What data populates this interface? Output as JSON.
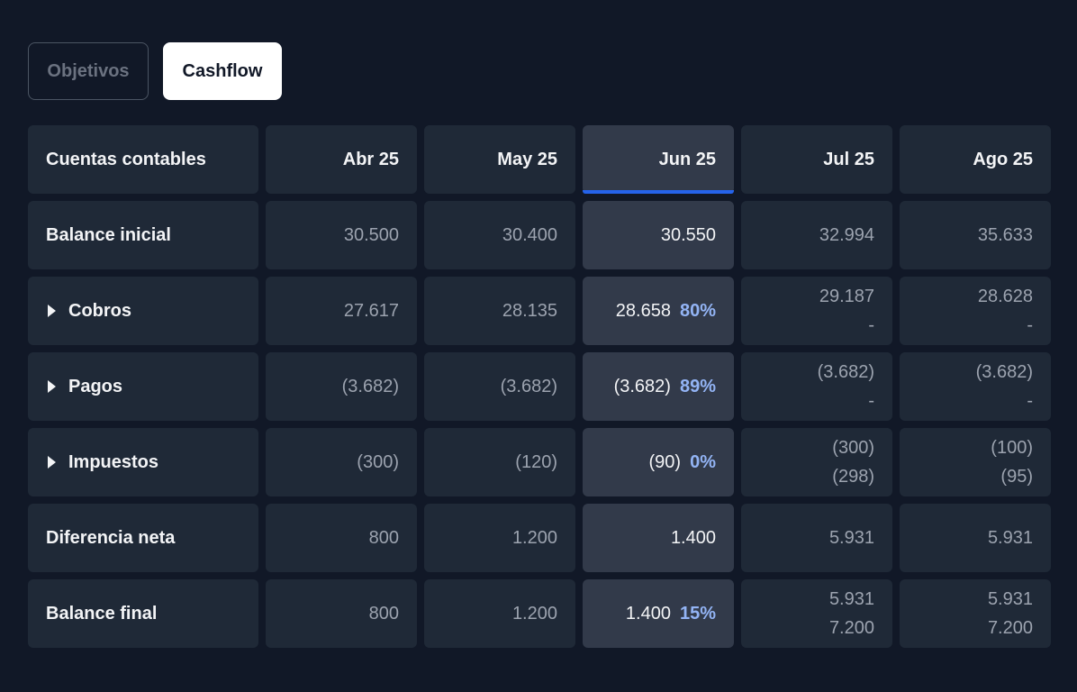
{
  "tabs": [
    {
      "label": "Objetivos",
      "active": false
    },
    {
      "label": "Cashflow",
      "active": true
    }
  ],
  "table": {
    "header_first": "Cuentas contables",
    "months": [
      "Abr 25",
      "May 25",
      "Jun 25",
      "Jul 25",
      "Ago 25"
    ],
    "highlight_month": "Jun 25",
    "rows": [
      {
        "label": "Balance inicial",
        "expandable": false,
        "abr": "30.500",
        "may": "30.400",
        "jun": {
          "value": "30.550",
          "pct": ""
        },
        "jul": {
          "line1": "32.994",
          "line2": ""
        },
        "ago": {
          "line1": "35.633",
          "line2": ""
        }
      },
      {
        "label": "Cobros",
        "expandable": true,
        "abr": "27.617",
        "may": "28.135",
        "jun": {
          "value": "28.658",
          "pct": "80%"
        },
        "jul": {
          "line1": "29.187",
          "line2": "-"
        },
        "ago": {
          "line1": "28.628",
          "line2": "-"
        }
      },
      {
        "label": "Pagos",
        "expandable": true,
        "abr": "(3.682)",
        "may": "(3.682)",
        "jun": {
          "value": "(3.682)",
          "pct": "89%"
        },
        "jul": {
          "line1": "(3.682)",
          "line2": "-"
        },
        "ago": {
          "line1": "(3.682)",
          "line2": "-"
        }
      },
      {
        "label": "Impuestos",
        "expandable": true,
        "abr": "(300)",
        "may": "(120)",
        "jun": {
          "value": "(90)",
          "pct": "0%"
        },
        "jul": {
          "line1": "(300)",
          "line2": "(298)"
        },
        "ago": {
          "line1": "(100)",
          "line2": "(95)"
        }
      },
      {
        "label": "Diferencia neta",
        "expandable": false,
        "abr": "800",
        "may": "1.200",
        "jun": {
          "value": "1.400",
          "pct": ""
        },
        "jul": {
          "line1": "5.931",
          "line2": ""
        },
        "ago": {
          "line1": "5.931",
          "line2": ""
        }
      },
      {
        "label": "Balance final",
        "expandable": false,
        "abr": "800",
        "may": "1.200",
        "jun": {
          "value": "1.400",
          "pct": "15%"
        },
        "jul": {
          "line1": "5.931",
          "line2": "7.200"
        },
        "ago": {
          "line1": "5.931",
          "line2": "7.200"
        }
      }
    ]
  },
  "colors": {
    "background": "#111827",
    "cell": "#1f2937",
    "highlight_cell": "#323a4a",
    "accent": "#2563eb",
    "percent": "#93b4f5"
  }
}
